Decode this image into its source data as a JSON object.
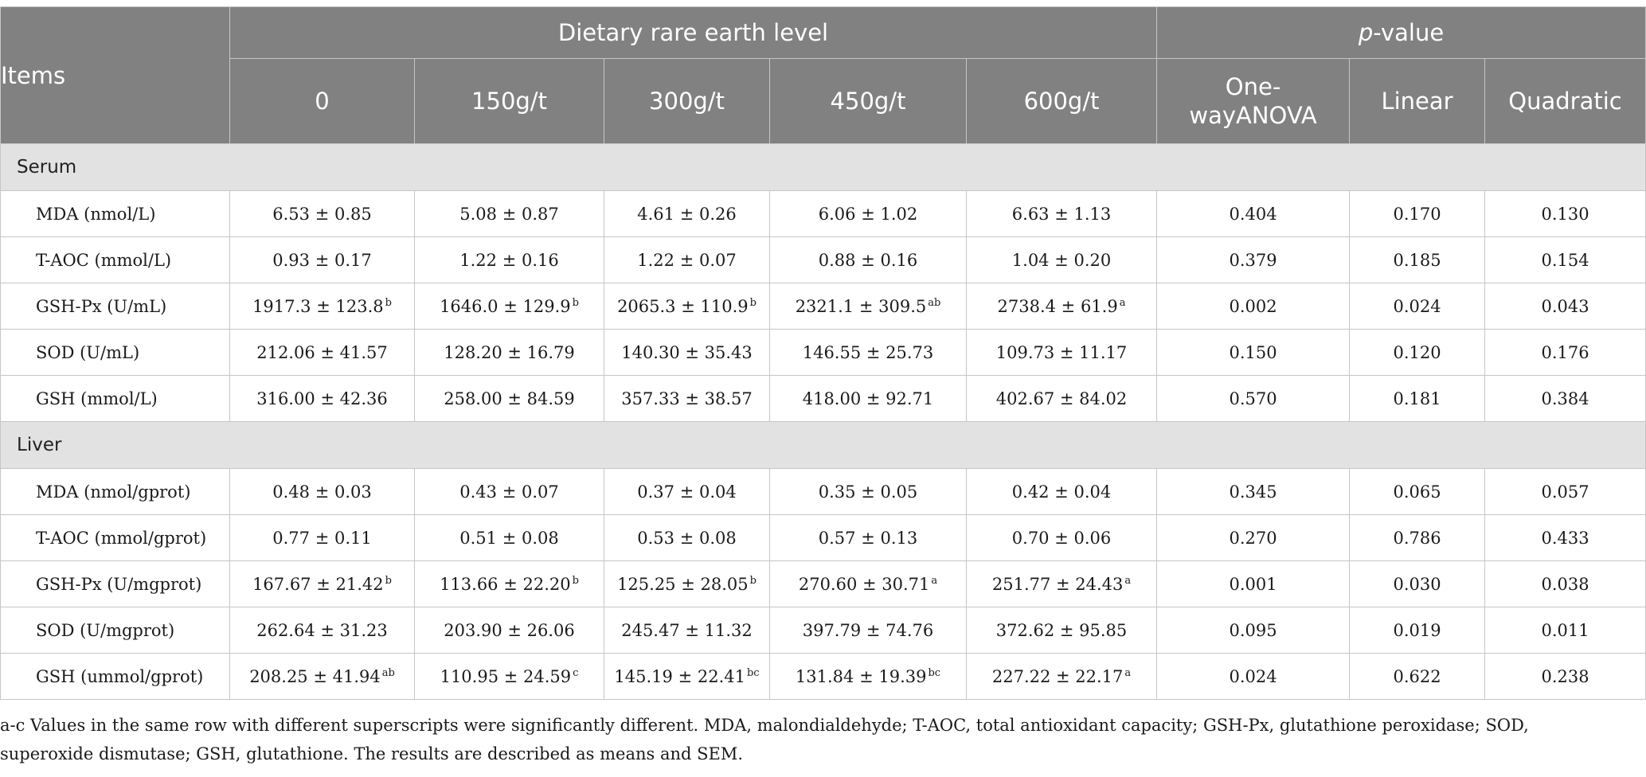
{
  "header": {
    "items": "Items",
    "group_dietary": "Dietary rare earth level",
    "group_p_italic": "p",
    "group_p_rest": "-value",
    "levels": [
      "0",
      "150g/t",
      "300g/t",
      "450g/t",
      "600g/t"
    ],
    "stats": [
      "One-wayANOVA",
      "Linear",
      "Quadratic"
    ]
  },
  "sections": [
    {
      "name": "Serum",
      "rows": [
        {
          "label": "MDA (nmol/L)",
          "values": [
            [
              "6.53 ± 0.85",
              ""
            ],
            [
              "5.08 ± 0.87",
              ""
            ],
            [
              "4.61 ± 0.26",
              ""
            ],
            [
              "6.06 ± 1.02",
              ""
            ],
            [
              "6.63 ± 1.13",
              ""
            ]
          ],
          "p": [
            "0.404",
            "0.170",
            "0.130"
          ]
        },
        {
          "label": "T-AOC (mmol/L)",
          "values": [
            [
              "0.93 ± 0.17",
              ""
            ],
            [
              "1.22 ± 0.16",
              ""
            ],
            [
              "1.22 ± 0.07",
              ""
            ],
            [
              "0.88 ± 0.16",
              ""
            ],
            [
              "1.04 ± 0.20",
              ""
            ]
          ],
          "p": [
            "0.379",
            "0.185",
            "0.154"
          ]
        },
        {
          "label": "GSH-Px (U/mL)",
          "values": [
            [
              "1917.3 ± 123.8",
              "b"
            ],
            [
              "1646.0 ± 129.9",
              "b"
            ],
            [
              "2065.3 ± 110.9",
              "b"
            ],
            [
              "2321.1 ± 309.5",
              "ab"
            ],
            [
              "2738.4 ± 61.9",
              "a"
            ]
          ],
          "p": [
            "0.002",
            "0.024",
            "0.043"
          ]
        },
        {
          "label": "SOD (U/mL)",
          "values": [
            [
              "212.06 ± 41.57",
              ""
            ],
            [
              "128.20 ± 16.79",
              ""
            ],
            [
              "140.30 ± 35.43",
              ""
            ],
            [
              "146.55 ± 25.73",
              ""
            ],
            [
              "109.73 ± 11.17",
              ""
            ]
          ],
          "p": [
            "0.150",
            "0.120",
            "0.176"
          ]
        },
        {
          "label": "GSH (mmol/L)",
          "values": [
            [
              "316.00 ± 42.36",
              ""
            ],
            [
              "258.00 ± 84.59",
              ""
            ],
            [
              "357.33 ± 38.57",
              ""
            ],
            [
              "418.00 ± 92.71",
              ""
            ],
            [
              "402.67 ± 84.02",
              ""
            ]
          ],
          "p": [
            "0.570",
            "0.181",
            "0.384"
          ]
        }
      ]
    },
    {
      "name": "Liver",
      "rows": [
        {
          "label": "MDA (nmol/gprot)",
          "values": [
            [
              "0.48 ± 0.03",
              ""
            ],
            [
              "0.43 ± 0.07",
              ""
            ],
            [
              "0.37 ± 0.04",
              ""
            ],
            [
              "0.35 ± 0.05",
              ""
            ],
            [
              "0.42 ± 0.04",
              ""
            ]
          ],
          "p": [
            "0.345",
            "0.065",
            "0.057"
          ]
        },
        {
          "label": "T-AOC (mmol/gprot)",
          "values": [
            [
              "0.77 ± 0.11",
              ""
            ],
            [
              "0.51 ± 0.08",
              ""
            ],
            [
              "0.53 ± 0.08",
              ""
            ],
            [
              "0.57 ± 0.13",
              ""
            ],
            [
              "0.70 ± 0.06",
              ""
            ]
          ],
          "p": [
            "0.270",
            "0.786",
            "0.433"
          ]
        },
        {
          "label": "GSH-Px (U/mgprot)",
          "values": [
            [
              "167.67 ± 21.42",
              "b"
            ],
            [
              "113.66 ± 22.20",
              "b"
            ],
            [
              "125.25 ± 28.05",
              "b"
            ],
            [
              "270.60 ± 30.71",
              "a"
            ],
            [
              "251.77 ± 24.43",
              "a"
            ]
          ],
          "p": [
            "0.001",
            "0.030",
            "0.038"
          ]
        },
        {
          "label": "SOD (U/mgprot)",
          "values": [
            [
              "262.64 ± 31.23",
              ""
            ],
            [
              "203.90 ± 26.06",
              ""
            ],
            [
              "245.47 ± 11.32",
              ""
            ],
            [
              "397.79 ± 74.76",
              ""
            ],
            [
              "372.62 ± 95.85",
              ""
            ]
          ],
          "p": [
            "0.095",
            "0.019",
            "0.011"
          ]
        },
        {
          "label": "GSH (ummol/gprot)",
          "values": [
            [
              "208.25 ± 41.94",
              "ab"
            ],
            [
              "110.95 ± 24.59",
              "c"
            ],
            [
              "145.19 ± 22.41",
              "bc"
            ],
            [
              "131.84 ± 19.39",
              "bc"
            ],
            [
              "227.22 ± 22.17",
              "a"
            ]
          ],
          "p": [
            "0.024",
            "0.622",
            "0.238"
          ]
        }
      ]
    }
  ],
  "footnote": "a-c Values in the same row with different superscripts were significantly different. MDA, malondialdehyde; T-AOC, total antioxidant capacity; GSH-Px, glutathione peroxidase; SOD, superoxide dismutase; GSH, glutathione. The results are described as means and SEM."
}
